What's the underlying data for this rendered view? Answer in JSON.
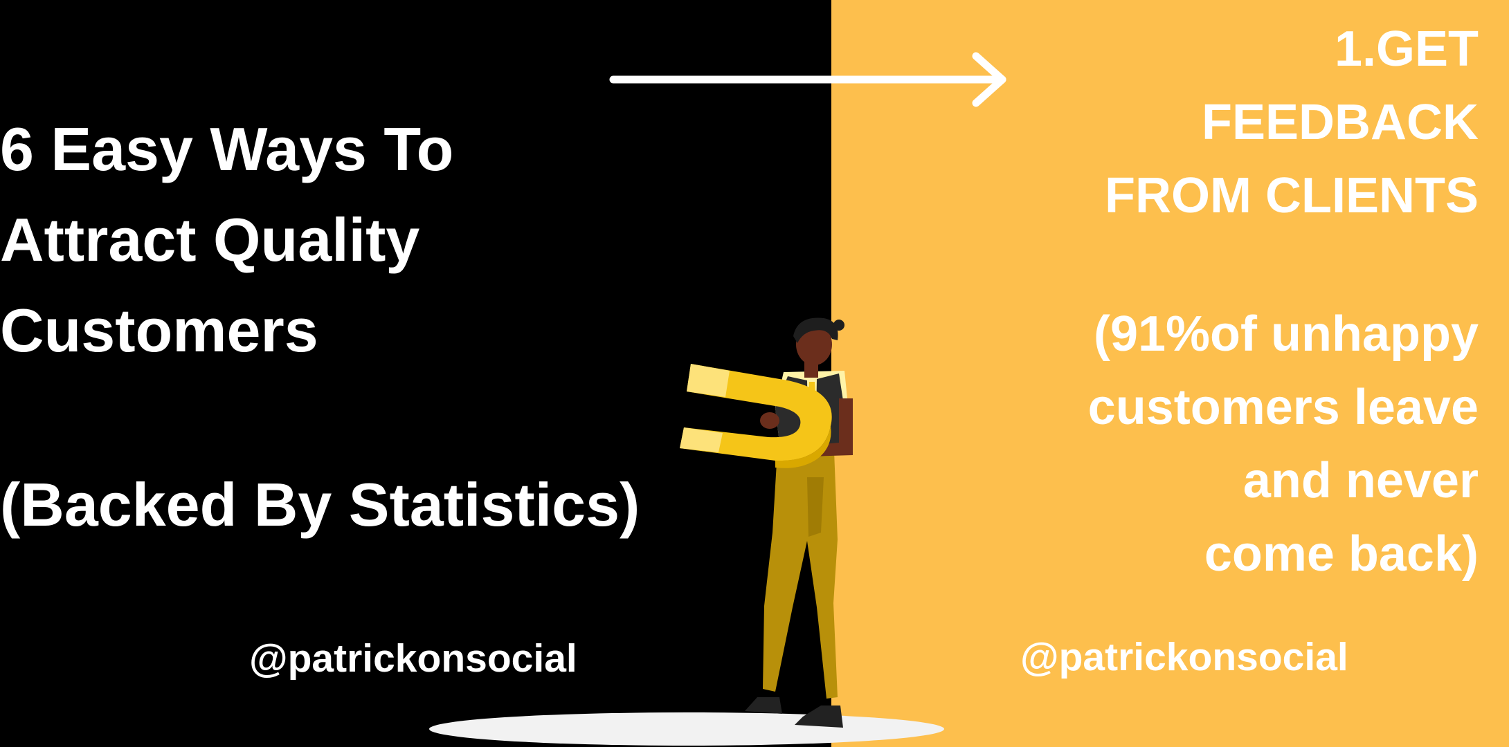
{
  "title": {
    "text": "6 Easy Ways To\nAttract Quality\nCustomers",
    "subtitle": "(Backed By Statistics)"
  },
  "tip": {
    "heading": "1.GET\nFEEDBACK\nFROM CLIENTS",
    "statistic": "(91%of unhappy\ncustomers leave\nand never\ncome back)"
  },
  "handles": {
    "left": "@patrickonsocial",
    "right": "@patrickonsocial"
  },
  "icons": {
    "arrow": "right-arrow-icon",
    "illustration": "person-holding-magnet"
  },
  "colors": {
    "left_background": "#000000",
    "right_background": "#FDBF4D",
    "text": "#FFFFFF",
    "magnet": "#F5C518"
  }
}
